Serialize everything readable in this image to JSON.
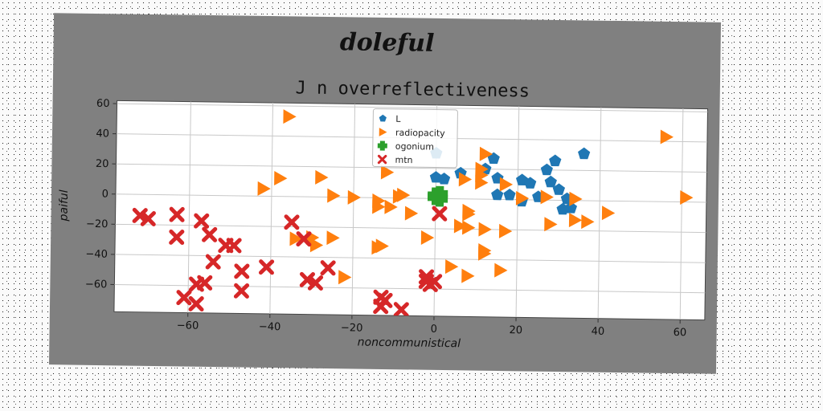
{
  "figure": {
    "suptitle": "doleful"
  },
  "chart_data": {
    "type": "scatter",
    "title": "J n overreflectiveness",
    "xlabel": "noncommunistical",
    "ylabel": "paiful",
    "xlim": [
      -78,
      66
    ],
    "ylim": [
      -78,
      62
    ],
    "xticks": [
      -60,
      -40,
      -20,
      0,
      20,
      40,
      60
    ],
    "yticks": [
      -60,
      -40,
      -20,
      0,
      20,
      40,
      60
    ],
    "grid": true,
    "legend_position": "top-center",
    "series": [
      {
        "name": "L",
        "marker": "pentagon",
        "color": "#1f77b4",
        "points": [
          [
            36,
            31
          ],
          [
            29,
            26
          ],
          [
            27,
            20
          ],
          [
            14,
            27
          ],
          [
            12,
            20
          ],
          [
            6,
            17
          ],
          [
            15,
            14
          ],
          [
            0,
            14
          ],
          [
            2,
            13
          ],
          [
            21,
            13
          ],
          [
            23,
            11
          ],
          [
            28,
            12
          ],
          [
            30,
            7
          ],
          [
            18,
            3
          ],
          [
            15,
            3
          ],
          [
            25,
            2
          ],
          [
            32,
            1
          ],
          [
            33,
            -5
          ],
          [
            31,
            -6
          ],
          [
            21,
            -1
          ],
          [
            0,
            30
          ]
        ]
      },
      {
        "name": "radiopacity",
        "marker": "triangle-right",
        "color": "#ff7f0e",
        "points": [
          [
            -36,
            53
          ],
          [
            56,
            43
          ],
          [
            12,
            30
          ],
          [
            11,
            20
          ],
          [
            11,
            16
          ],
          [
            7,
            13
          ],
          [
            -38,
            12
          ],
          [
            -28,
            13
          ],
          [
            -12,
            17
          ],
          [
            -42,
            5
          ],
          [
            -25,
            1
          ],
          [
            -20,
            0
          ],
          [
            -14,
            -2
          ],
          [
            -9,
            1
          ],
          [
            -14,
            -6
          ],
          [
            -11,
            -6
          ],
          [
            -6,
            -10
          ],
          [
            8,
            -8
          ],
          [
            8,
            -10
          ],
          [
            -8,
            2
          ],
          [
            11,
            11
          ],
          [
            17,
            10
          ],
          [
            21,
            1
          ],
          [
            27,
            2
          ],
          [
            34,
            1
          ],
          [
            61,
            3
          ],
          [
            42,
            -8
          ],
          [
            34,
            -13
          ],
          [
            37,
            -14
          ],
          [
            28,
            -16
          ],
          [
            6,
            -18
          ],
          [
            8,
            -19
          ],
          [
            12,
            -20
          ],
          [
            17,
            -21
          ],
          [
            -2,
            -26
          ],
          [
            -14,
            -33
          ],
          [
            -25,
            -27
          ],
          [
            -30,
            -27
          ],
          [
            -34,
            -28
          ],
          [
            -29,
            -32
          ],
          [
            -13,
            -32
          ],
          [
            12,
            -34
          ],
          [
            12,
            -36
          ],
          [
            4,
            -45
          ],
          [
            16,
            -47
          ],
          [
            8,
            -51
          ],
          [
            -22,
            -53
          ]
        ]
      },
      {
        "name": "ogonium",
        "marker": "plus",
        "color": "#2ca02c",
        "points": [
          [
            0,
            2
          ],
          [
            1,
            3
          ],
          [
            1,
            0
          ],
          [
            0,
            1
          ]
        ]
      },
      {
        "name": "mtn",
        "marker": "x",
        "color": "#d62728",
        "points": [
          [
            -72,
            -14
          ],
          [
            -70,
            -16
          ],
          [
            -63,
            -13
          ],
          [
            -57,
            -17
          ],
          [
            -55,
            -26
          ],
          [
            -51,
            -33
          ],
          [
            -49,
            -33
          ],
          [
            -54,
            -44
          ],
          [
            -47,
            -50
          ],
          [
            -41,
            -47
          ],
          [
            -63,
            -28
          ],
          [
            -35,
            -17
          ],
          [
            -32,
            -28
          ],
          [
            -31,
            -55
          ],
          [
            -29,
            -57
          ],
          [
            -26,
            -47
          ],
          [
            -56,
            -58
          ],
          [
            -58,
            -59
          ],
          [
            -47,
            -63
          ],
          [
            -61,
            -68
          ],
          [
            -58,
            -72
          ],
          [
            -13,
            -66
          ],
          [
            -12,
            -68
          ],
          [
            -13,
            -72
          ],
          [
            -8,
            -74
          ],
          [
            -2,
            -52
          ],
          [
            -2,
            -55
          ],
          [
            -1,
            -57
          ],
          [
            0,
            -55
          ],
          [
            1,
            -10
          ]
        ]
      }
    ]
  }
}
